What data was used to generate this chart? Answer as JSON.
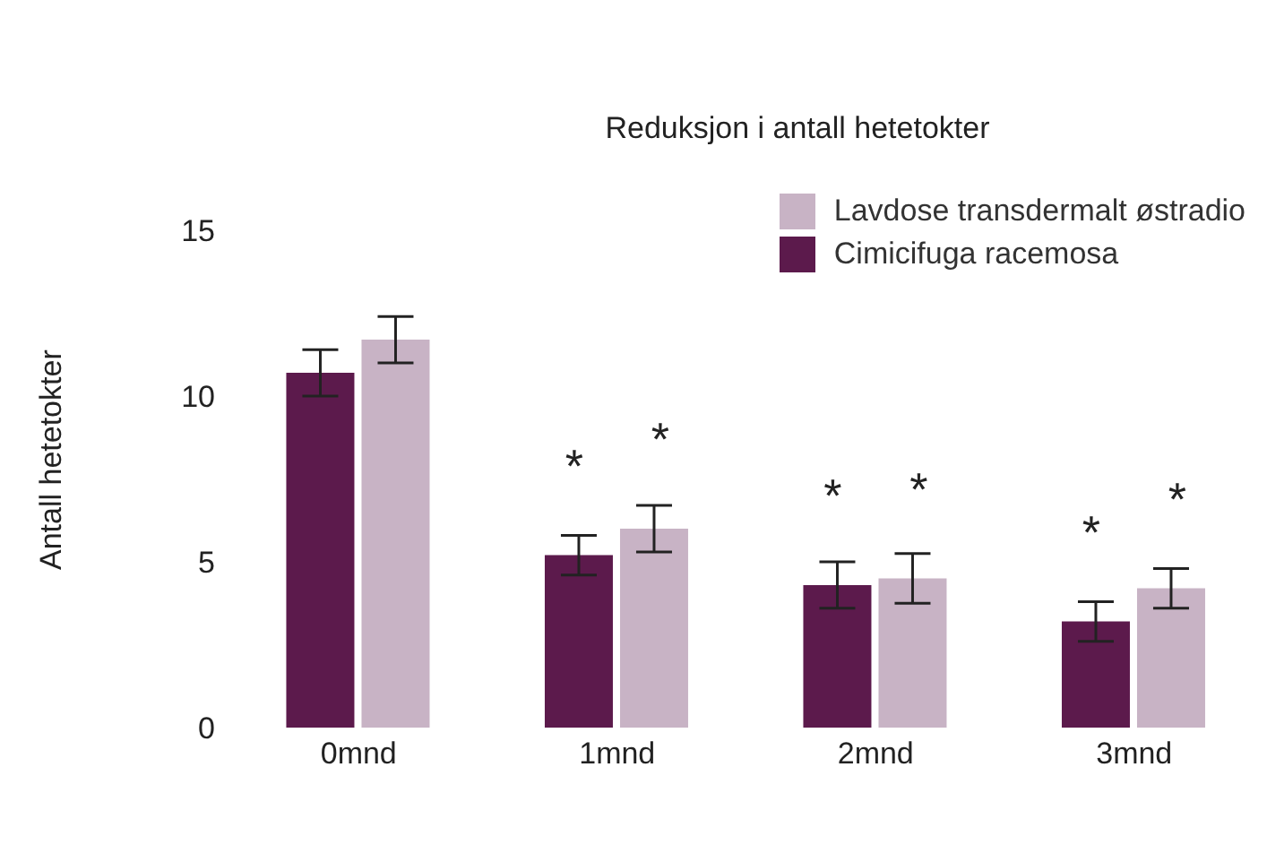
{
  "chart_data": {
    "type": "bar",
    "title": "Reduksjon i antall hetetokter",
    "ylabel": "Antall hetetokter",
    "categories": [
      "0mnd",
      "1mnd",
      "2mnd",
      "3mnd"
    ],
    "series": [
      {
        "name": "Cimicifuga racemosa",
        "color": "#5c1a4c",
        "values": [
          10.7,
          5.2,
          4.3,
          3.2
        ],
        "errors": [
          0.7,
          0.6,
          0.7,
          0.6
        ]
      },
      {
        "name": "Lavdose transdermalt østradio",
        "color": "#c8b3c5",
        "values": [
          11.7,
          6.0,
          4.5,
          4.2
        ],
        "errors": [
          0.7,
          0.7,
          0.75,
          0.6
        ]
      }
    ],
    "ylim": [
      0,
      16
    ],
    "yticks": [
      0,
      5,
      10,
      15
    ],
    "grid": false,
    "legend": "top right",
    "annotations": [
      {
        "text": "*",
        "x": "1mnd",
        "y": 5.2
      },
      {
        "text": "*",
        "x": "1mnd",
        "y": 6.0
      },
      {
        "text": "*",
        "x": "2mnd",
        "y": 4.3
      },
      {
        "text": "*",
        "x": "2mnd",
        "y": 4.5
      },
      {
        "text": "*",
        "x": "3mnd",
        "y": 3.2
      },
      {
        "text": "*",
        "x": "3mnd",
        "y": 4.2
      }
    ]
  }
}
